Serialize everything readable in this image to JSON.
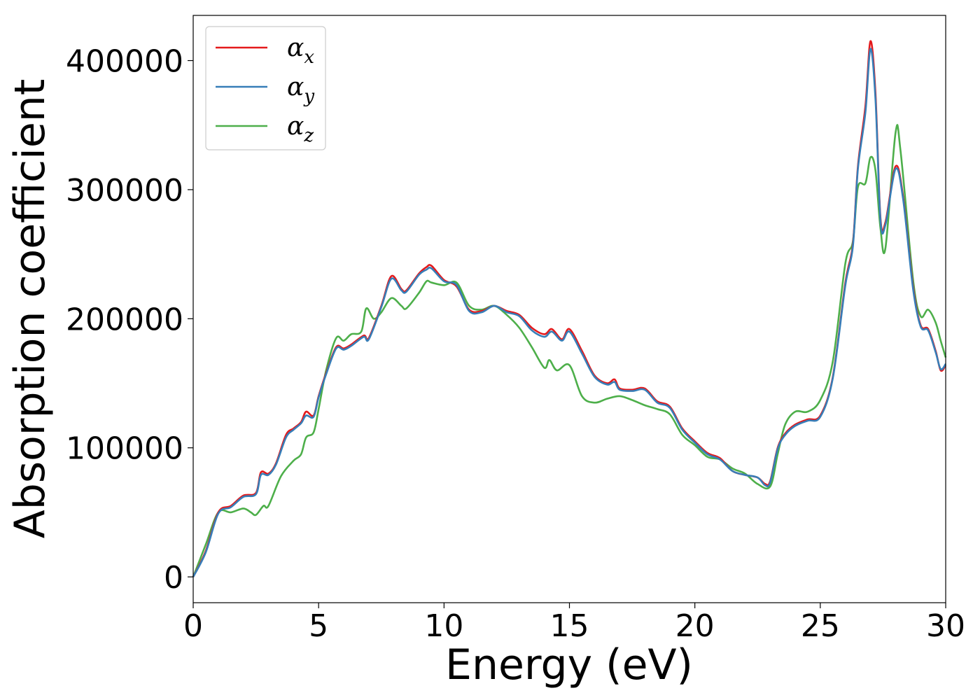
{
  "chart_data": {
    "type": "line",
    "title": "",
    "xlabel": "Energy (eV)",
    "ylabel": "Absorption coefficient",
    "xlim": [
      0,
      30
    ],
    "ylim": [
      -20000,
      435000
    ],
    "xticks": [
      0,
      5,
      10,
      15,
      20,
      25,
      30
    ],
    "xtick_labels": [
      "0",
      "5",
      "10",
      "15",
      "20",
      "25",
      "30"
    ],
    "yticks": [
      0,
      100000,
      200000,
      300000,
      400000
    ],
    "ytick_labels": [
      "0",
      "100000",
      "200000",
      "300000",
      "400000"
    ],
    "grid": false,
    "legend_position": "top-left",
    "series": [
      {
        "name": "αx",
        "symbol": "α",
        "subscript": "x",
        "color": "#e41a1c",
        "points": [
          [
            0,
            0
          ],
          [
            0.5,
            20000
          ],
          [
            1,
            50000
          ],
          [
            1.5,
            55000
          ],
          [
            2,
            63000
          ],
          [
            2.5,
            65000
          ],
          [
            2.7,
            81000
          ],
          [
            3,
            80000
          ],
          [
            3.3,
            88000
          ],
          [
            3.7,
            110000
          ],
          [
            4,
            115000
          ],
          [
            4.3,
            120000
          ],
          [
            4.5,
            128000
          ],
          [
            4.8,
            125000
          ],
          [
            5,
            140000
          ],
          [
            5.3,
            158000
          ],
          [
            5.7,
            178000
          ],
          [
            6,
            177000
          ],
          [
            6.3,
            180000
          ],
          [
            6.8,
            187000
          ],
          [
            7,
            185000
          ],
          [
            7.5,
            210000
          ],
          [
            7.9,
            233000
          ],
          [
            8.3,
            223000
          ],
          [
            8.5,
            222000
          ],
          [
            9,
            235000
          ],
          [
            9.3,
            240000
          ],
          [
            9.5,
            241000
          ],
          [
            10,
            230000
          ],
          [
            10.5,
            225000
          ],
          [
            11,
            207000
          ],
          [
            11.5,
            206000
          ],
          [
            12,
            210000
          ],
          [
            12.5,
            206000
          ],
          [
            13,
            203000
          ],
          [
            13.5,
            193000
          ],
          [
            14,
            188000
          ],
          [
            14.3,
            192000
          ],
          [
            14.7,
            184000
          ],
          [
            15,
            192000
          ],
          [
            15.5,
            175000
          ],
          [
            16,
            156000
          ],
          [
            16.5,
            150000
          ],
          [
            16.8,
            153000
          ],
          [
            17,
            146000
          ],
          [
            17.5,
            145000
          ],
          [
            18,
            146000
          ],
          [
            18.5,
            136000
          ],
          [
            19,
            132000
          ],
          [
            19.5,
            115000
          ],
          [
            20,
            105000
          ],
          [
            20.5,
            96000
          ],
          [
            21,
            92000
          ],
          [
            21.5,
            82000
          ],
          [
            22,
            79000
          ],
          [
            22.5,
            77000
          ],
          [
            22.8,
            72000
          ],
          [
            23,
            74000
          ],
          [
            23.3,
            100000
          ],
          [
            23.6,
            111000
          ],
          [
            24,
            118000
          ],
          [
            24.5,
            122000
          ],
          [
            25,
            125000
          ],
          [
            25.5,
            155000
          ],
          [
            26,
            228000
          ],
          [
            26.3,
            258000
          ],
          [
            26.5,
            318000
          ],
          [
            26.8,
            365000
          ],
          [
            27,
            415000
          ],
          [
            27.2,
            375000
          ],
          [
            27.4,
            278000
          ],
          [
            27.6,
            275000
          ],
          [
            28,
            318000
          ],
          [
            28.3,
            295000
          ],
          [
            28.7,
            225000
          ],
          [
            29,
            195000
          ],
          [
            29.3,
            192000
          ],
          [
            29.6,
            175000
          ],
          [
            29.8,
            160000
          ],
          [
            30,
            164000
          ]
        ]
      },
      {
        "name": "αy",
        "symbol": "α",
        "subscript": "y",
        "color": "#377eb8",
        "points": [
          [
            0,
            0
          ],
          [
            0.5,
            19000
          ],
          [
            1,
            49000
          ],
          [
            1.5,
            54000
          ],
          [
            2,
            62000
          ],
          [
            2.5,
            64000
          ],
          [
            2.7,
            79000
          ],
          [
            3,
            79000
          ],
          [
            3.3,
            87000
          ],
          [
            3.7,
            108000
          ],
          [
            4,
            114000
          ],
          [
            4.3,
            119000
          ],
          [
            4.5,
            125000
          ],
          [
            4.8,
            124000
          ],
          [
            5,
            139000
          ],
          [
            5.3,
            157000
          ],
          [
            5.7,
            177000
          ],
          [
            6,
            176000
          ],
          [
            6.3,
            179000
          ],
          [
            6.8,
            186000
          ],
          [
            7,
            184000
          ],
          [
            7.5,
            209000
          ],
          [
            7.9,
            231000
          ],
          [
            8.3,
            222000
          ],
          [
            8.5,
            221000
          ],
          [
            9,
            234000
          ],
          [
            9.3,
            238000
          ],
          [
            9.5,
            239000
          ],
          [
            10,
            229000
          ],
          [
            10.5,
            226000
          ],
          [
            11,
            206000
          ],
          [
            11.5,
            205000
          ],
          [
            12,
            210000
          ],
          [
            12.5,
            205000
          ],
          [
            13,
            202000
          ],
          [
            13.5,
            191000
          ],
          [
            14,
            186000
          ],
          [
            14.3,
            190000
          ],
          [
            14.7,
            183000
          ],
          [
            15,
            190000
          ],
          [
            15.5,
            173000
          ],
          [
            16,
            155000
          ],
          [
            16.5,
            149000
          ],
          [
            16.8,
            151000
          ],
          [
            17,
            145000
          ],
          [
            17.5,
            144000
          ],
          [
            18,
            145000
          ],
          [
            18.5,
            135000
          ],
          [
            19,
            131000
          ],
          [
            19.5,
            114000
          ],
          [
            20,
            104000
          ],
          [
            20.5,
            95000
          ],
          [
            21,
            91000
          ],
          [
            21.5,
            82000
          ],
          [
            22,
            79000
          ],
          [
            22.5,
            77000
          ],
          [
            22.8,
            71000
          ],
          [
            23,
            73000
          ],
          [
            23.3,
            99000
          ],
          [
            23.6,
            110000
          ],
          [
            24,
            117000
          ],
          [
            24.5,
            121000
          ],
          [
            25,
            124000
          ],
          [
            25.5,
            154000
          ],
          [
            26,
            226000
          ],
          [
            26.3,
            256000
          ],
          [
            26.5,
            316000
          ],
          [
            26.8,
            360000
          ],
          [
            27,
            409000
          ],
          [
            27.2,
            370000
          ],
          [
            27.4,
            276000
          ],
          [
            27.6,
            273000
          ],
          [
            28,
            316000
          ],
          [
            28.3,
            293000
          ],
          [
            28.7,
            223000
          ],
          [
            29,
            194000
          ],
          [
            29.3,
            191000
          ],
          [
            29.6,
            174000
          ],
          [
            29.8,
            161000
          ],
          [
            30,
            165000
          ]
        ]
      },
      {
        "name": "αz",
        "symbol": "α",
        "subscript": "z",
        "color": "#4daf4a",
        "points": [
          [
            0,
            0
          ],
          [
            0.5,
            25000
          ],
          [
            1,
            50000
          ],
          [
            1.5,
            50000
          ],
          [
            2,
            53000
          ],
          [
            2.3,
            50000
          ],
          [
            2.5,
            48000
          ],
          [
            2.8,
            55000
          ],
          [
            3,
            55000
          ],
          [
            3.5,
            78000
          ],
          [
            4,
            90000
          ],
          [
            4.3,
            95000
          ],
          [
            4.5,
            108000
          ],
          [
            4.8,
            112000
          ],
          [
            5,
            130000
          ],
          [
            5.3,
            160000
          ],
          [
            5.7,
            185000
          ],
          [
            6,
            183000
          ],
          [
            6.3,
            188000
          ],
          [
            6.7,
            190000
          ],
          [
            6.9,
            208000
          ],
          [
            7.2,
            200000
          ],
          [
            7.5,
            205000
          ],
          [
            7.9,
            216000
          ],
          [
            8.3,
            210000
          ],
          [
            8.5,
            208000
          ],
          [
            9,
            220000
          ],
          [
            9.3,
            229000
          ],
          [
            9.5,
            228000
          ],
          [
            10,
            226000
          ],
          [
            10.5,
            228000
          ],
          [
            11,
            210000
          ],
          [
            11.5,
            207000
          ],
          [
            12,
            210000
          ],
          [
            12.5,
            203000
          ],
          [
            13,
            193000
          ],
          [
            13.5,
            178000
          ],
          [
            14,
            162000
          ],
          [
            14.2,
            168000
          ],
          [
            14.5,
            160000
          ],
          [
            15,
            164000
          ],
          [
            15.5,
            140000
          ],
          [
            16,
            135000
          ],
          [
            16.5,
            138000
          ],
          [
            17,
            140000
          ],
          [
            17.5,
            137000
          ],
          [
            18,
            133000
          ],
          [
            18.5,
            130000
          ],
          [
            19,
            126000
          ],
          [
            19.5,
            110000
          ],
          [
            20,
            102000
          ],
          [
            20.5,
            93000
          ],
          [
            21,
            91000
          ],
          [
            21.5,
            84000
          ],
          [
            22,
            80000
          ],
          [
            22.5,
            72000
          ],
          [
            23,
            70000
          ],
          [
            23.3,
            95000
          ],
          [
            23.6,
            118000
          ],
          [
            24,
            128000
          ],
          [
            24.5,
            128000
          ],
          [
            25,
            137000
          ],
          [
            25.5,
            167000
          ],
          [
            26,
            243000
          ],
          [
            26.3,
            260000
          ],
          [
            26.5,
            302000
          ],
          [
            26.8,
            305000
          ],
          [
            27,
            325000
          ],
          [
            27.2,
            315000
          ],
          [
            27.4,
            270000
          ],
          [
            27.6,
            255000
          ],
          [
            28,
            344000
          ],
          [
            28.2,
            330000
          ],
          [
            28.7,
            230000
          ],
          [
            29,
            202000
          ],
          [
            29.3,
            207000
          ],
          [
            29.6,
            197000
          ],
          [
            29.8,
            183000
          ],
          [
            30,
            170000
          ]
        ]
      }
    ]
  }
}
